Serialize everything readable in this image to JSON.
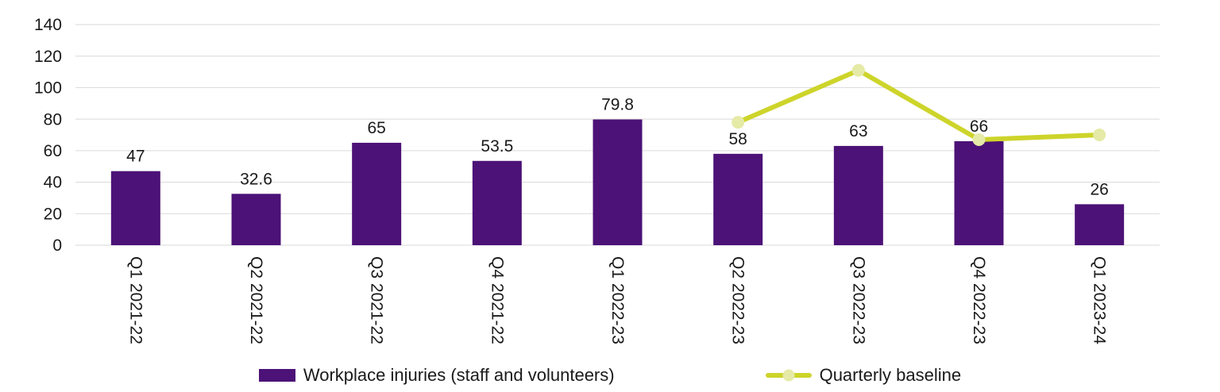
{
  "chart_data": {
    "type": "bar",
    "categories": [
      "Q1 2021-22",
      "Q2 2021-22",
      "Q3 2021-22",
      "Q4 2021-22",
      "Q1 2022-23",
      "Q2 2022-23",
      "Q3 2022-23",
      "Q4 2022-23",
      "Q1 2023-24"
    ],
    "series": [
      {
        "name": "Workplace injuries (staff and volunteers)",
        "type": "bar",
        "color": "#4c1277",
        "values": [
          47,
          32.6,
          65,
          53.5,
          79.8,
          58,
          63,
          66,
          26
        ],
        "labels": [
          "47",
          "32.6",
          "65",
          "53.5",
          "79.8",
          "58",
          "63",
          "66",
          "26"
        ]
      },
      {
        "name": "Quarterly baseline",
        "type": "line",
        "color": "#cdd42a",
        "marker_fill": "#e5eaa6",
        "values": [
          null,
          null,
          null,
          null,
          null,
          78,
          111,
          67,
          70
        ]
      }
    ],
    "title": "",
    "xlabel": "",
    "ylabel": "",
    "ylim": [
      0,
      140
    ],
    "ytick_interval": 20,
    "ytick_labels": [
      "0",
      "20",
      "40",
      "60",
      "80",
      "100",
      "120",
      "140"
    ],
    "grid": "horizontal",
    "grid_color": "#d9d9d9",
    "text_color": "#1a1a1a",
    "legend_position": "bottom"
  }
}
